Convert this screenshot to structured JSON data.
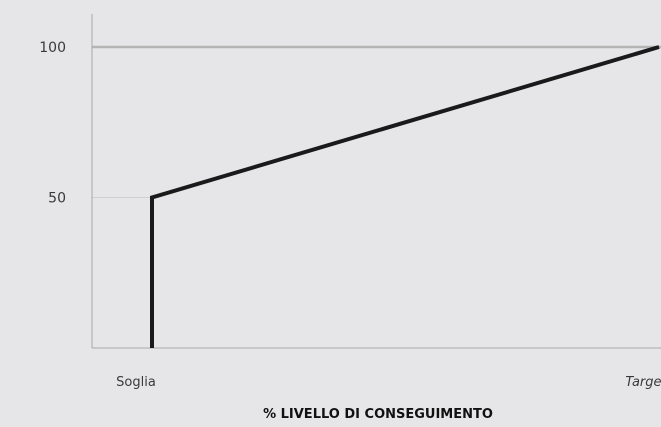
{
  "chart_data": {
    "type": "line",
    "title": "",
    "xlabel": "% LIVELLO DI CONSEGUIMENTO",
    "ylabel": "",
    "ylim": [
      0,
      100
    ],
    "yticks": [
      50,
      100
    ],
    "categories": [
      "Soglia",
      "Target"
    ],
    "series": [
      {
        "x": [
          "Soglia",
          "Soglia",
          "Target"
        ],
        "values": [
          0,
          50,
          100
        ]
      }
    ],
    "grid": true,
    "colors": {
      "background": "#e6e6e8",
      "line": "#1a1a1a",
      "axis": "#a8a8a8",
      "grid_major": "#b4b4b4",
      "grid_minor": "#cfcfcf"
    }
  }
}
